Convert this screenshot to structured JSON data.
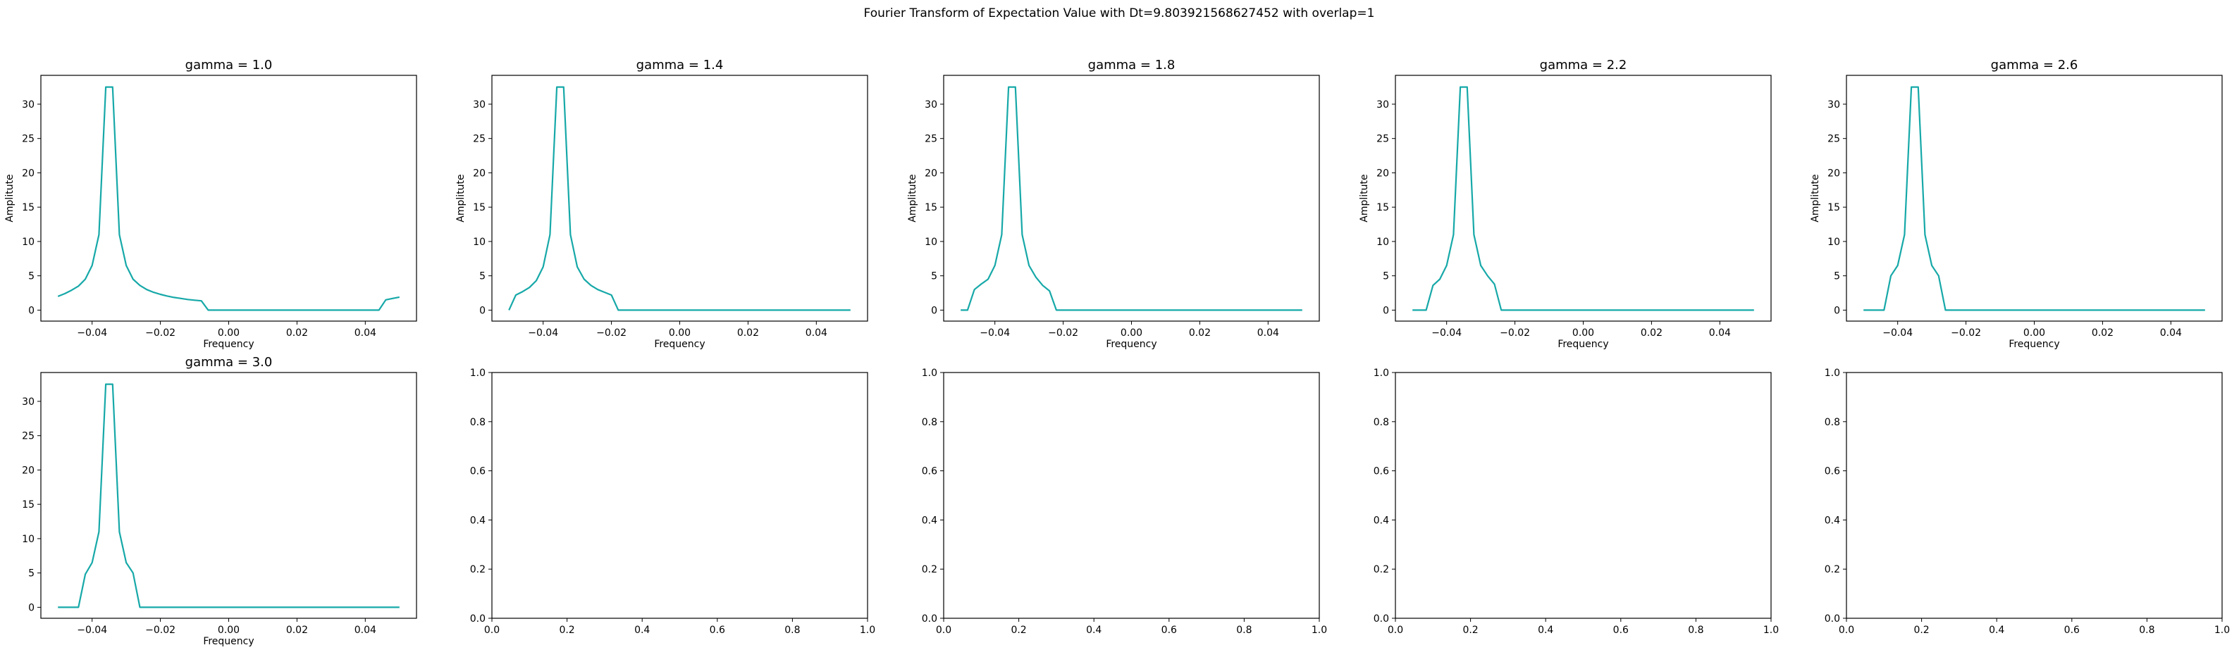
{
  "figure": {
    "title": "Fourier Transform of Expectation Value with Dt=9.803921568627452 with overlap=1"
  },
  "colors": {
    "line": "#17a8a8",
    "axes": "#000000"
  },
  "chart_data": [
    {
      "type": "line",
      "title": "gamma = 1.0",
      "xlabel": "Frequency",
      "ylabel": "Amplitute",
      "xlim": [
        -0.055,
        0.055
      ],
      "ylim": [
        -1.6,
        34.2
      ],
      "xticks": [
        -0.04,
        -0.02,
        0.0,
        0.02,
        0.04
      ],
      "xtick_labels": [
        "−0.04",
        "−0.02",
        "0.00",
        "0.02",
        "0.04"
      ],
      "yticks": [
        0,
        5,
        10,
        15,
        20,
        25,
        30
      ],
      "ytick_labels": [
        "0",
        "5",
        "10",
        "15",
        "20",
        "25",
        "30"
      ],
      "x": [
        -0.05,
        -0.048,
        -0.046,
        -0.044,
        -0.042,
        -0.04,
        -0.038,
        -0.036,
        -0.034,
        -0.032,
        -0.03,
        -0.028,
        -0.026,
        -0.024,
        -0.022,
        -0.02,
        -0.018,
        -0.016,
        -0.014,
        -0.012,
        -0.01,
        -0.008,
        -0.006,
        -0.004,
        0.0,
        0.02,
        0.044,
        0.046,
        0.048,
        0.05
      ],
      "y": [
        2.0,
        2.4,
        2.9,
        3.5,
        4.5,
        6.5,
        11.0,
        32.5,
        32.5,
        11.0,
        6.5,
        4.5,
        3.6,
        3.0,
        2.6,
        2.3,
        2.05,
        1.85,
        1.7,
        1.55,
        1.45,
        1.35,
        0.0,
        0.0,
        0.0,
        0.0,
        0.0,
        1.5,
        1.7,
        1.9
      ]
    },
    {
      "type": "line",
      "title": "gamma = 1.4",
      "xlabel": "Frequency",
      "ylabel": "Amplitute",
      "xlim": [
        -0.055,
        0.055
      ],
      "ylim": [
        -1.6,
        34.2
      ],
      "xticks": [
        -0.04,
        -0.02,
        0.0,
        0.02,
        0.04
      ],
      "xtick_labels": [
        "−0.04",
        "−0.02",
        "0.00",
        "0.02",
        "0.04"
      ],
      "yticks": [
        0,
        5,
        10,
        15,
        20,
        25,
        30
      ],
      "ytick_labels": [
        "0",
        "5",
        "10",
        "15",
        "20",
        "25",
        "30"
      ],
      "x": [
        -0.05,
        -0.048,
        -0.046,
        -0.044,
        -0.042,
        -0.04,
        -0.038,
        -0.036,
        -0.034,
        -0.032,
        -0.03,
        -0.028,
        -0.026,
        -0.024,
        -0.022,
        -0.02,
        -0.018,
        -0.016,
        -0.014,
        0.0,
        0.02,
        0.05
      ],
      "y": [
        0.0,
        2.2,
        2.7,
        3.3,
        4.3,
        6.3,
        11.0,
        32.5,
        32.5,
        11.0,
        6.3,
        4.5,
        3.6,
        3.0,
        2.6,
        2.2,
        0.0,
        0.0,
        0.0,
        0.0,
        0.0,
        0.0
      ]
    },
    {
      "type": "line",
      "title": "gamma = 1.8",
      "xlabel": "Frequency",
      "ylabel": "Amplitute",
      "xlim": [
        -0.055,
        0.055
      ],
      "ylim": [
        -1.6,
        34.2
      ],
      "xticks": [
        -0.04,
        -0.02,
        0.0,
        0.02,
        0.04
      ],
      "xtick_labels": [
        "−0.04",
        "−0.02",
        "0.00",
        "0.02",
        "0.04"
      ],
      "yticks": [
        0,
        5,
        10,
        15,
        20,
        25,
        30
      ],
      "ytick_labels": [
        "0",
        "5",
        "10",
        "15",
        "20",
        "25",
        "30"
      ],
      "x": [
        -0.05,
        -0.048,
        -0.046,
        -0.044,
        -0.042,
        -0.04,
        -0.038,
        -0.036,
        -0.034,
        -0.032,
        -0.03,
        -0.028,
        -0.026,
        -0.024,
        -0.022,
        -0.02,
        0.0,
        0.02,
        0.05
      ],
      "y": [
        0.0,
        0.0,
        3.0,
        3.8,
        4.5,
        6.5,
        11.0,
        32.5,
        32.5,
        11.0,
        6.5,
        4.8,
        3.6,
        2.8,
        0.0,
        0.0,
        0.0,
        0.0,
        0.0
      ]
    },
    {
      "type": "line",
      "title": "gamma = 2.2",
      "xlabel": "Frequency",
      "ylabel": "Amplitute",
      "xlim": [
        -0.055,
        0.055
      ],
      "ylim": [
        -1.6,
        34.2
      ],
      "xticks": [
        -0.04,
        -0.02,
        0.0,
        0.02,
        0.04
      ],
      "xtick_labels": [
        "−0.04",
        "−0.02",
        "0.00",
        "0.02",
        "0.04"
      ],
      "yticks": [
        0,
        5,
        10,
        15,
        20,
        25,
        30
      ],
      "ytick_labels": [
        "0",
        "5",
        "10",
        "15",
        "20",
        "25",
        "30"
      ],
      "x": [
        -0.05,
        -0.048,
        -0.046,
        -0.044,
        -0.042,
        -0.04,
        -0.038,
        -0.036,
        -0.034,
        -0.032,
        -0.03,
        -0.028,
        -0.026,
        -0.024,
        -0.022,
        0.0,
        0.02,
        0.05
      ],
      "y": [
        0.0,
        0.0,
        0.0,
        3.6,
        4.5,
        6.5,
        11.0,
        32.5,
        32.5,
        11.0,
        6.5,
        5.0,
        3.8,
        0.0,
        0.0,
        0.0,
        0.0,
        0.0
      ]
    },
    {
      "type": "line",
      "title": "gamma = 2.6",
      "xlabel": "Frequency",
      "ylabel": "Amplitute",
      "xlim": [
        -0.055,
        0.055
      ],
      "ylim": [
        -1.6,
        34.2
      ],
      "xticks": [
        -0.04,
        -0.02,
        0.0,
        0.02,
        0.04
      ],
      "xtick_labels": [
        "−0.04",
        "−0.02",
        "0.00",
        "0.02",
        "0.04"
      ],
      "yticks": [
        0,
        5,
        10,
        15,
        20,
        25,
        30
      ],
      "ytick_labels": [
        "0",
        "5",
        "10",
        "15",
        "20",
        "25",
        "30"
      ],
      "x": [
        -0.05,
        -0.048,
        -0.046,
        -0.044,
        -0.042,
        -0.04,
        -0.038,
        -0.036,
        -0.034,
        -0.032,
        -0.03,
        -0.028,
        -0.026,
        -0.024,
        0.0,
        0.02,
        0.05
      ],
      "y": [
        0.0,
        0.0,
        0.0,
        0.0,
        5.0,
        6.5,
        11.0,
        32.5,
        32.5,
        11.0,
        6.5,
        5.0,
        0.0,
        0.0,
        0.0,
        0.0,
        0.0
      ]
    },
    {
      "type": "line",
      "title": "gamma = 3.0",
      "xlabel": "Frequency",
      "ylabel": "",
      "xlim": [
        -0.055,
        0.055
      ],
      "ylim": [
        -1.6,
        34.2
      ],
      "xticks": [
        -0.04,
        -0.02,
        0.0,
        0.02,
        0.04
      ],
      "xtick_labels": [
        "−0.04",
        "−0.02",
        "0.00",
        "0.02",
        "0.04"
      ],
      "yticks": [
        0,
        5,
        10,
        15,
        20,
        25,
        30
      ],
      "ytick_labels": [
        "0",
        "5",
        "10",
        "15",
        "20",
        "25",
        "30"
      ],
      "x": [
        -0.05,
        -0.048,
        -0.046,
        -0.044,
        -0.042,
        -0.04,
        -0.038,
        -0.036,
        -0.034,
        -0.032,
        -0.03,
        -0.028,
        -0.026,
        -0.024,
        0.0,
        0.02,
        0.05
      ],
      "y": [
        0.0,
        0.0,
        0.0,
        0.0,
        4.8,
        6.5,
        11.0,
        32.5,
        32.5,
        11.0,
        6.5,
        5.0,
        0.0,
        0.0,
        0.0,
        0.0,
        0.0
      ]
    },
    {
      "type": "line",
      "title": "",
      "xlabel": "",
      "ylabel": "",
      "xlim": [
        0,
        1
      ],
      "ylim": [
        0,
        1
      ],
      "xticks": [
        0.0,
        0.2,
        0.4,
        0.6,
        0.8,
        1.0
      ],
      "xtick_labels": [
        "0.0",
        "0.2",
        "0.4",
        "0.6",
        "0.8",
        "1.0"
      ],
      "yticks": [
        0.0,
        0.2,
        0.4,
        0.6,
        0.8,
        1.0
      ],
      "ytick_labels": [
        "0.0",
        "0.2",
        "0.4",
        "0.6",
        "0.8",
        "1.0"
      ],
      "x": [],
      "y": []
    },
    {
      "type": "line",
      "title": "",
      "xlabel": "",
      "ylabel": "",
      "xlim": [
        0,
        1
      ],
      "ylim": [
        0,
        1
      ],
      "xticks": [
        0.0,
        0.2,
        0.4,
        0.6,
        0.8,
        1.0
      ],
      "xtick_labels": [
        "0.0",
        "0.2",
        "0.4",
        "0.6",
        "0.8",
        "1.0"
      ],
      "yticks": [
        0.0,
        0.2,
        0.4,
        0.6,
        0.8,
        1.0
      ],
      "ytick_labels": [
        "0.0",
        "0.2",
        "0.4",
        "0.6",
        "0.8",
        "1.0"
      ],
      "x": [],
      "y": []
    },
    {
      "type": "line",
      "title": "",
      "xlabel": "",
      "ylabel": "",
      "xlim": [
        0,
        1
      ],
      "ylim": [
        0,
        1
      ],
      "xticks": [
        0.0,
        0.2,
        0.4,
        0.6,
        0.8,
        1.0
      ],
      "xtick_labels": [
        "0.0",
        "0.2",
        "0.4",
        "0.6",
        "0.8",
        "1.0"
      ],
      "yticks": [
        0.0,
        0.2,
        0.4,
        0.6,
        0.8,
        1.0
      ],
      "ytick_labels": [
        "0.0",
        "0.2",
        "0.4",
        "0.6",
        "0.8",
        "1.0"
      ],
      "x": [],
      "y": []
    },
    {
      "type": "line",
      "title": "",
      "xlabel": "",
      "ylabel": "",
      "xlim": [
        0,
        1
      ],
      "ylim": [
        0,
        1
      ],
      "xticks": [
        0.0,
        0.2,
        0.4,
        0.6,
        0.8,
        1.0
      ],
      "xtick_labels": [
        "0.0",
        "0.2",
        "0.4",
        "0.6",
        "0.8",
        "1.0"
      ],
      "yticks": [
        0.0,
        0.2,
        0.4,
        0.6,
        0.8,
        1.0
      ],
      "ytick_labels": [
        "0.0",
        "0.2",
        "0.4",
        "0.6",
        "0.8",
        "1.0"
      ],
      "x": [],
      "y": []
    }
  ]
}
